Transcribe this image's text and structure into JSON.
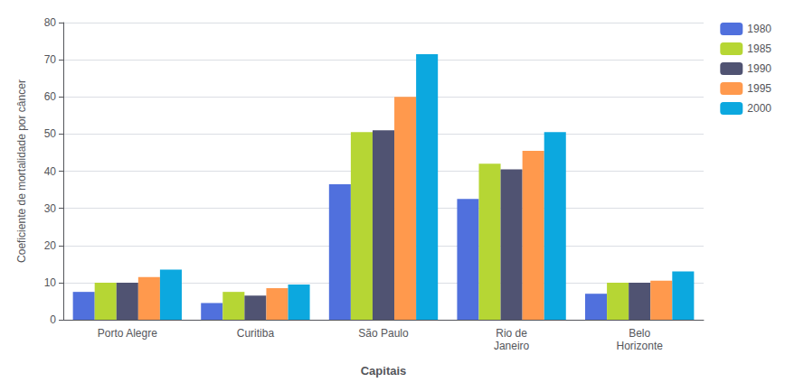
{
  "chart_data": {
    "type": "bar",
    "categories": [
      "Porto Alegre",
      "Curitiba",
      "São Paulo",
      "Rio de\nJaneiro",
      "Belo\nHorizonte"
    ],
    "series": [
      {
        "name": "1980",
        "values": [
          7.5,
          4.5,
          36.5,
          32.5,
          7.0
        ]
      },
      {
        "name": "1985",
        "values": [
          10.0,
          7.5,
          50.5,
          42.0,
          10.0
        ]
      },
      {
        "name": "1990",
        "values": [
          10.0,
          6.5,
          51.0,
          40.5,
          10.0
        ]
      },
      {
        "name": "1995",
        "values": [
          11.5,
          8.5,
          60.0,
          45.5,
          10.5
        ]
      },
      {
        "name": "2000",
        "values": [
          13.5,
          9.5,
          71.5,
          50.5,
          13.0
        ]
      }
    ],
    "xlabel": "Capitais",
    "ylabel": "Coeficiente de mortalidade por câncer",
    "ylim": [
      0,
      80
    ],
    "yticks": [
      0,
      10,
      20,
      30,
      40,
      50,
      60,
      70,
      80
    ],
    "grid": true,
    "legend": "right"
  }
}
